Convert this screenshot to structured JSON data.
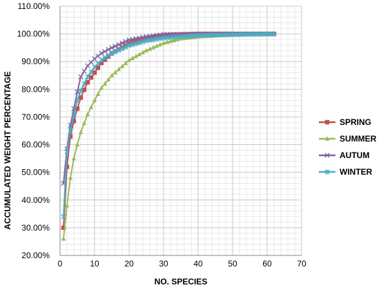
{
  "chart_data": {
    "type": "line",
    "xlabel": "NO. SPECIES",
    "ylabel": "ACCUMULATED WEIGHT PERCENTAGE",
    "xlim": [
      0,
      70
    ],
    "ylim": [
      20,
      110
    ],
    "x_ticks": [
      "0",
      "10",
      "20",
      "30",
      "40",
      "50",
      "60",
      "70"
    ],
    "y_ticks": [
      "20.00%",
      "30.00%",
      "40.00%",
      "50.00%",
      "60.00%",
      "70.00%",
      "80.00%",
      "90.00%",
      "100.00%",
      "110.00%"
    ],
    "grid": true,
    "legend_position": "right",
    "series": [
      {
        "name": "SPRING",
        "color": "#c0504d",
        "marker": "square",
        "k": 0.205,
        "points": [
          [
            1,
            30.0
          ],
          [
            2,
            52.0
          ],
          [
            3,
            63.0
          ],
          [
            4,
            68.5
          ],
          [
            5,
            73.0
          ],
          [
            6,
            77.0
          ],
          [
            7,
            79.8
          ],
          [
            8,
            82.5
          ],
          [
            10,
            86.0
          ],
          [
            12,
            89.5
          ],
          [
            15,
            93.0
          ],
          [
            20,
            96.5
          ],
          [
            25,
            98.5
          ],
          [
            30,
            99.6
          ],
          [
            40,
            100.0
          ],
          [
            62,
            100.0
          ]
        ]
      },
      {
        "name": "SUMMER",
        "color": "#9bbb59",
        "marker": "triangle",
        "k": 0.115,
        "points": [
          [
            1,
            26.0
          ],
          [
            2,
            38.0
          ],
          [
            3,
            48.0
          ],
          [
            4,
            55.0
          ],
          [
            5,
            60.0
          ],
          [
            6,
            64.5
          ],
          [
            8,
            71.0
          ],
          [
            10,
            76.0
          ],
          [
            12,
            80.5
          ],
          [
            15,
            85.0
          ],
          [
            20,
            90.5
          ],
          [
            25,
            94.0
          ],
          [
            30,
            96.7
          ],
          [
            35,
            98.3
          ],
          [
            40,
            99.0
          ],
          [
            50,
            99.7
          ],
          [
            62,
            100.0
          ]
        ]
      },
      {
        "name": "AUTUM",
        "color": "#8064a2",
        "marker": "x",
        "k": 0.22,
        "points": [
          [
            1,
            46.0
          ],
          [
            2,
            58.5
          ],
          [
            3,
            67.0
          ],
          [
            4,
            73.0
          ],
          [
            5,
            79.0
          ],
          [
            6,
            84.5
          ],
          [
            8,
            88.5
          ],
          [
            10,
            91.0
          ],
          [
            12,
            93.0
          ],
          [
            15,
            95.0
          ],
          [
            20,
            97.8
          ],
          [
            25,
            99.0
          ],
          [
            30,
            99.8
          ],
          [
            40,
            100.0
          ],
          [
            62,
            100.0
          ]
        ]
      },
      {
        "name": "WINTER",
        "color": "#4bacc6",
        "marker": "star",
        "k": 0.18,
        "points": [
          [
            1,
            34.0
          ],
          [
            2,
            57.5
          ],
          [
            3,
            65.0
          ],
          [
            4,
            70.5
          ],
          [
            5,
            76.0
          ],
          [
            6,
            79.5
          ],
          [
            8,
            84.5
          ],
          [
            10,
            88.0
          ],
          [
            12,
            90.5
          ],
          [
            15,
            93.0
          ],
          [
            20,
            95.8
          ],
          [
            25,
            97.5
          ],
          [
            30,
            98.5
          ],
          [
            40,
            99.5
          ],
          [
            62,
            100.0
          ]
        ]
      }
    ]
  }
}
